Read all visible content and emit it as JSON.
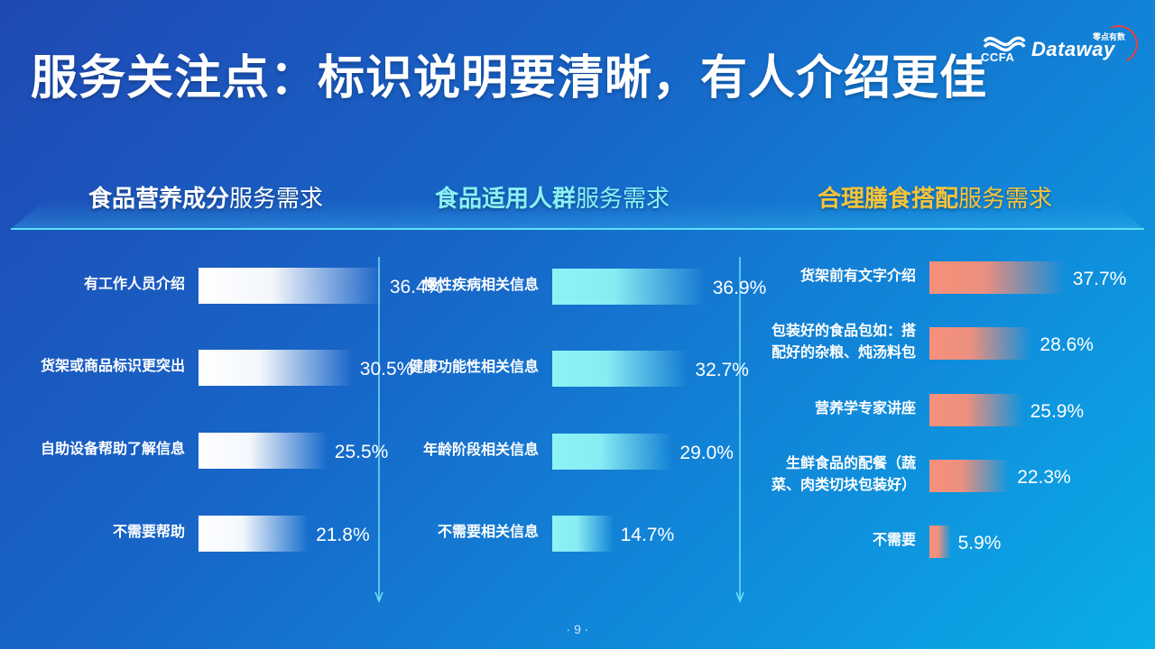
{
  "title": "服务关注点：标识说明要清晰，有人介绍更佳",
  "logo": {
    "ccfa": "CCFA",
    "dataway": "Dataway",
    "dataway_sub": "零点有数"
  },
  "page_number": "· 9 ·",
  "colors": {
    "panel1_bar": "#ffffff",
    "panel2_bar": "#8ef3f5",
    "panel3_bar": "#f7907a",
    "panel2_title": "#8bf1f5",
    "panel3_title": "#f6c33a"
  },
  "chart_data": [
    {
      "type": "bar",
      "orientation": "horizontal",
      "title_strong": "食品营养成分",
      "title_rest": "服务需求",
      "categories": [
        "有工作人员介绍",
        "货架或商品标识更突出",
        "自助设备帮助了解信息",
        "不需要帮助"
      ],
      "values": [
        36.4,
        30.5,
        25.5,
        21.8
      ],
      "value_labels": [
        "36.4%",
        "30.5%",
        "25.5%",
        "21.8%"
      ],
      "unit": "%"
    },
    {
      "type": "bar",
      "orientation": "horizontal",
      "title_strong": "食品适用人群",
      "title_rest": "服务需求",
      "categories": [
        "慢性疾病相关信息",
        "健康功能性相关信息",
        "年龄阶段相关信息",
        "不需要相关信息"
      ],
      "values": [
        36.9,
        32.7,
        29.0,
        14.7
      ],
      "value_labels": [
        "36.9%",
        "32.7%",
        "29.0%",
        "14.7%"
      ],
      "unit": "%"
    },
    {
      "type": "bar",
      "orientation": "horizontal",
      "title_strong": "合理膳食搭配",
      "title_rest": "服务需求",
      "categories": [
        [
          "货架前有文字介绍"
        ],
        [
          "包装好的食品包如：搭",
          "配好的杂粮、炖汤料包"
        ],
        [
          "营养学专家讲座"
        ],
        [
          "生鲜食品的配餐（蔬",
          "菜、肉类切块包装好）"
        ],
        [
          "不需要"
        ]
      ],
      "values": [
        37.7,
        28.6,
        25.9,
        22.3,
        5.9
      ],
      "value_labels": [
        "37.7%",
        "28.6%",
        "25.9%",
        "22.3%",
        "5.9%"
      ],
      "unit": "%"
    }
  ]
}
